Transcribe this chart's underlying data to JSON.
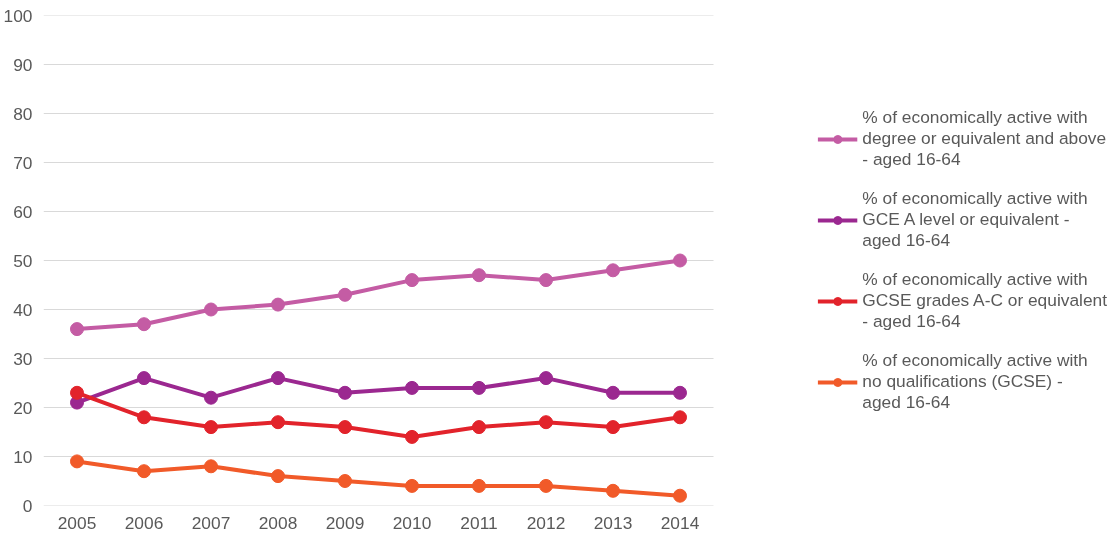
{
  "chart_data": {
    "type": "line",
    "categories": [
      "2005",
      "2006",
      "2007",
      "2008",
      "2009",
      "2010",
      "2011",
      "2012",
      "2013",
      "2014"
    ],
    "ylim": [
      0,
      100
    ],
    "yticks": [
      0,
      10,
      20,
      30,
      40,
      50,
      60,
      70,
      80,
      90,
      100
    ],
    "grid": "y",
    "legend": "right",
    "marker": "circle",
    "line_style": "solid",
    "series": [
      {
        "name": "% of economically active with degree or equivalent and above - aged 16-64",
        "color": "#c45ca4",
        "values": [
          36,
          37,
          40,
          41,
          43,
          46,
          47,
          46,
          48,
          50
        ]
      },
      {
        "name": "% of economically active with GCE A level or equivalent - aged 16-64",
        "color": "#9b2890",
        "values": [
          21,
          26,
          22,
          26,
          23,
          24,
          24,
          26,
          23,
          23
        ]
      },
      {
        "name": "% of economically active with GCSE grades A-C or equivalent - aged 16-64",
        "color": "#e2232b",
        "values": [
          23,
          18,
          16,
          17,
          16,
          14,
          16,
          17,
          16,
          18
        ]
      },
      {
        "name": "% of economically active with no qualifications (GCSE) - aged 16-64",
        "color": "#f15a29",
        "values": [
          9,
          7,
          8,
          6,
          5,
          4,
          4,
          4,
          3,
          2
        ]
      }
    ]
  }
}
